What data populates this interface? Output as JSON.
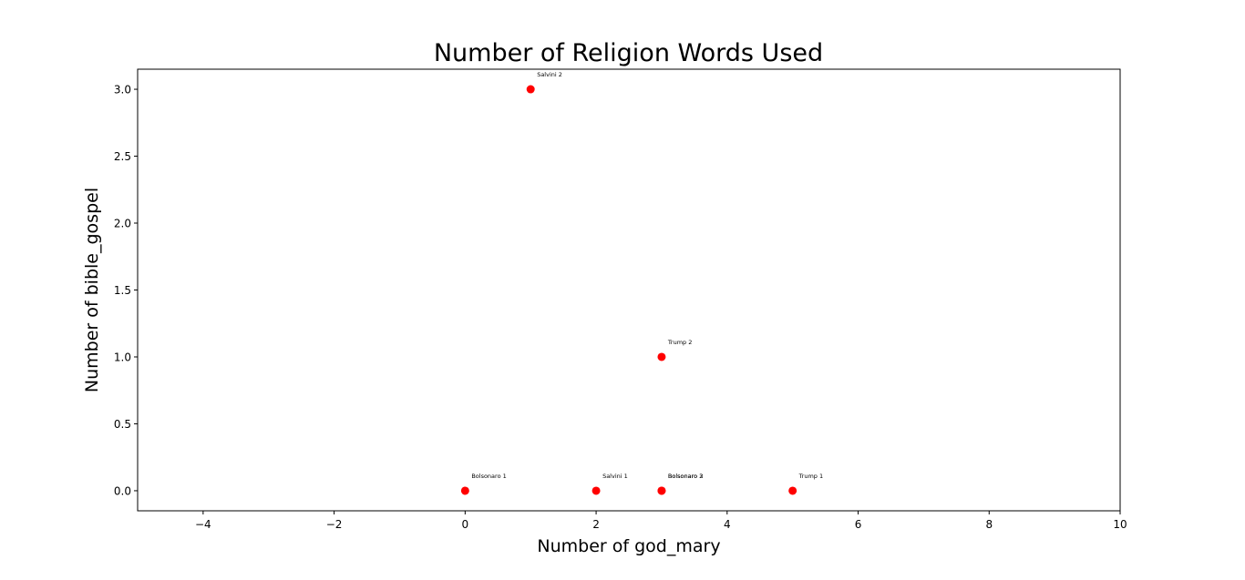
{
  "chart_data": {
    "type": "scatter",
    "title": "Number of Religion Words Used",
    "xlabel": "Number of god_mary",
    "ylabel": "Number of bible_gospel",
    "xlim": [
      -5,
      10
    ],
    "ylim": [
      -0.15,
      3.15
    ],
    "xticks": [
      -4,
      -2,
      0,
      2,
      4,
      6,
      8,
      10
    ],
    "xtick_labels": [
      "−4",
      "−2",
      "0",
      "2",
      "4",
      "6",
      "8",
      "10"
    ],
    "yticks": [
      0.0,
      0.5,
      1.0,
      1.5,
      2.0,
      2.5,
      3.0
    ],
    "ytick_labels": [
      "0.0",
      "0.5",
      "1.0",
      "1.5",
      "2.0",
      "2.5",
      "3.0"
    ],
    "grid": false,
    "marker_color": "#ff0000",
    "points": [
      {
        "label": "Bolsonaro 1",
        "x": 0,
        "y": 0
      },
      {
        "label": "Salvini 1",
        "x": 2,
        "y": 0
      },
      {
        "label": "Bolsonaro 2",
        "x": 3,
        "y": 0
      },
      {
        "label": "Bolsonaro 3",
        "x": 3,
        "y": 0
      },
      {
        "label": "Trump 1",
        "x": 5,
        "y": 0
      },
      {
        "label": "Trump 2",
        "x": 3,
        "y": 1
      },
      {
        "label": "Salvini 2",
        "x": 1,
        "y": 3
      }
    ]
  }
}
